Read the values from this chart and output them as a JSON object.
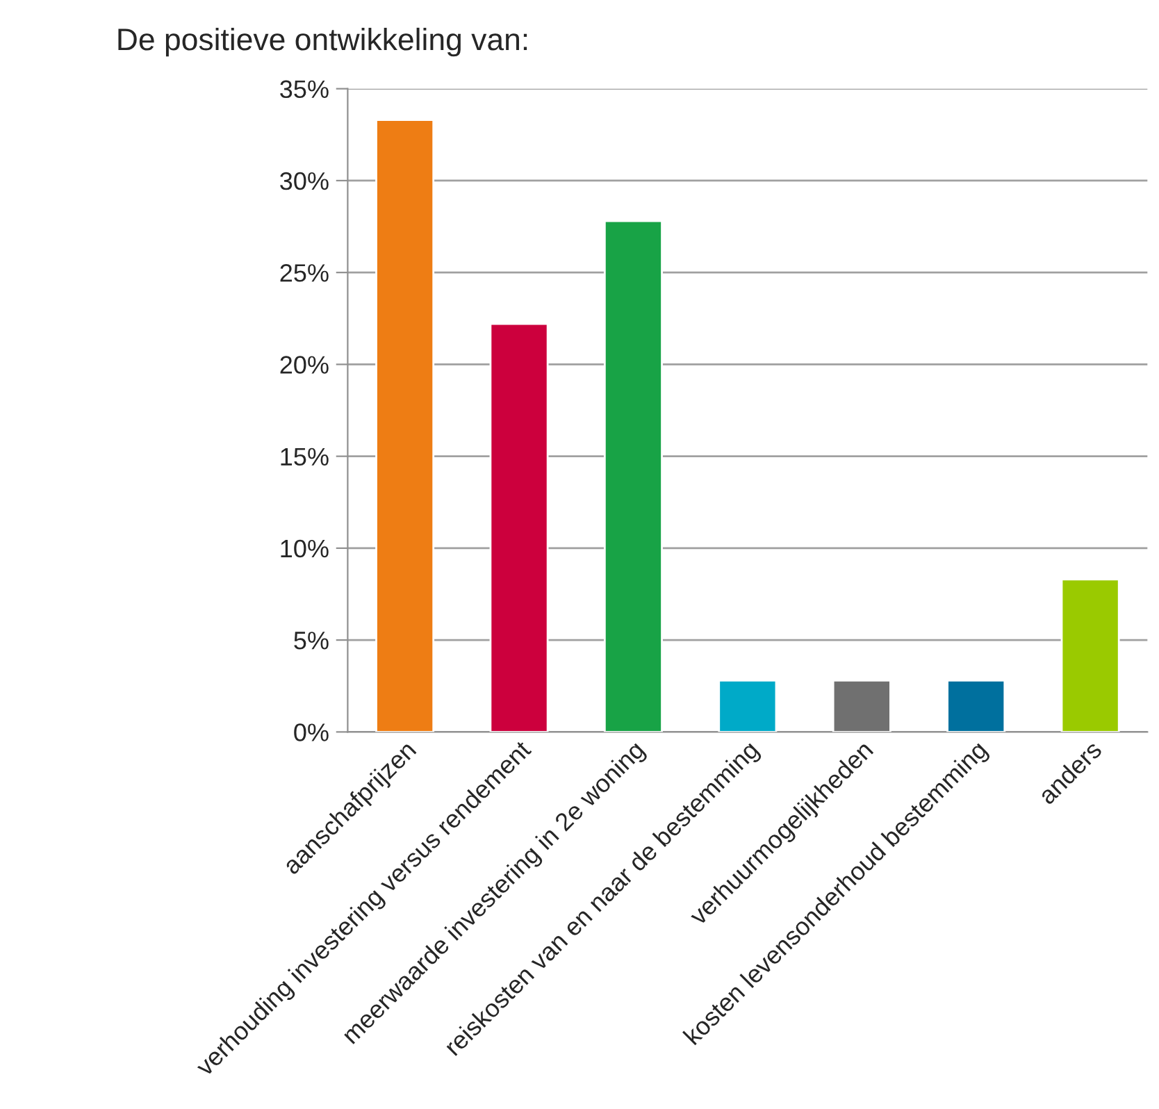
{
  "chart_data": {
    "type": "bar",
    "title": "De positieve ontwikkeling van:",
    "categories": [
      "aanschafprijzen",
      "verhouding investering versus rendement",
      "meerwaarde investering in 2e woning",
      "reiskosten van en naar de bestemming",
      "verhuurmogelijkheden",
      "kosten levensonderhoud bestemming",
      "anders"
    ],
    "values": [
      33.3,
      22.2,
      27.8,
      2.8,
      2.8,
      2.8,
      8.3
    ],
    "colors": [
      "#ee7d14",
      "#cc003d",
      "#18a346",
      "#00aac8",
      "#707070",
      "#00709e",
      "#9aca00"
    ],
    "ylim": [
      0,
      35
    ],
    "yticks": [
      {
        "value": 0,
        "label": "0%"
      },
      {
        "value": 5,
        "label": "5%"
      },
      {
        "value": 10,
        "label": "10%"
      },
      {
        "value": 15,
        "label": "15%"
      },
      {
        "value": 20,
        "label": "20%"
      },
      {
        "value": 25,
        "label": "25%"
      },
      {
        "value": 30,
        "label": "30%"
      },
      {
        "value": 35,
        "label": "35%"
      }
    ],
    "grid": "y"
  }
}
